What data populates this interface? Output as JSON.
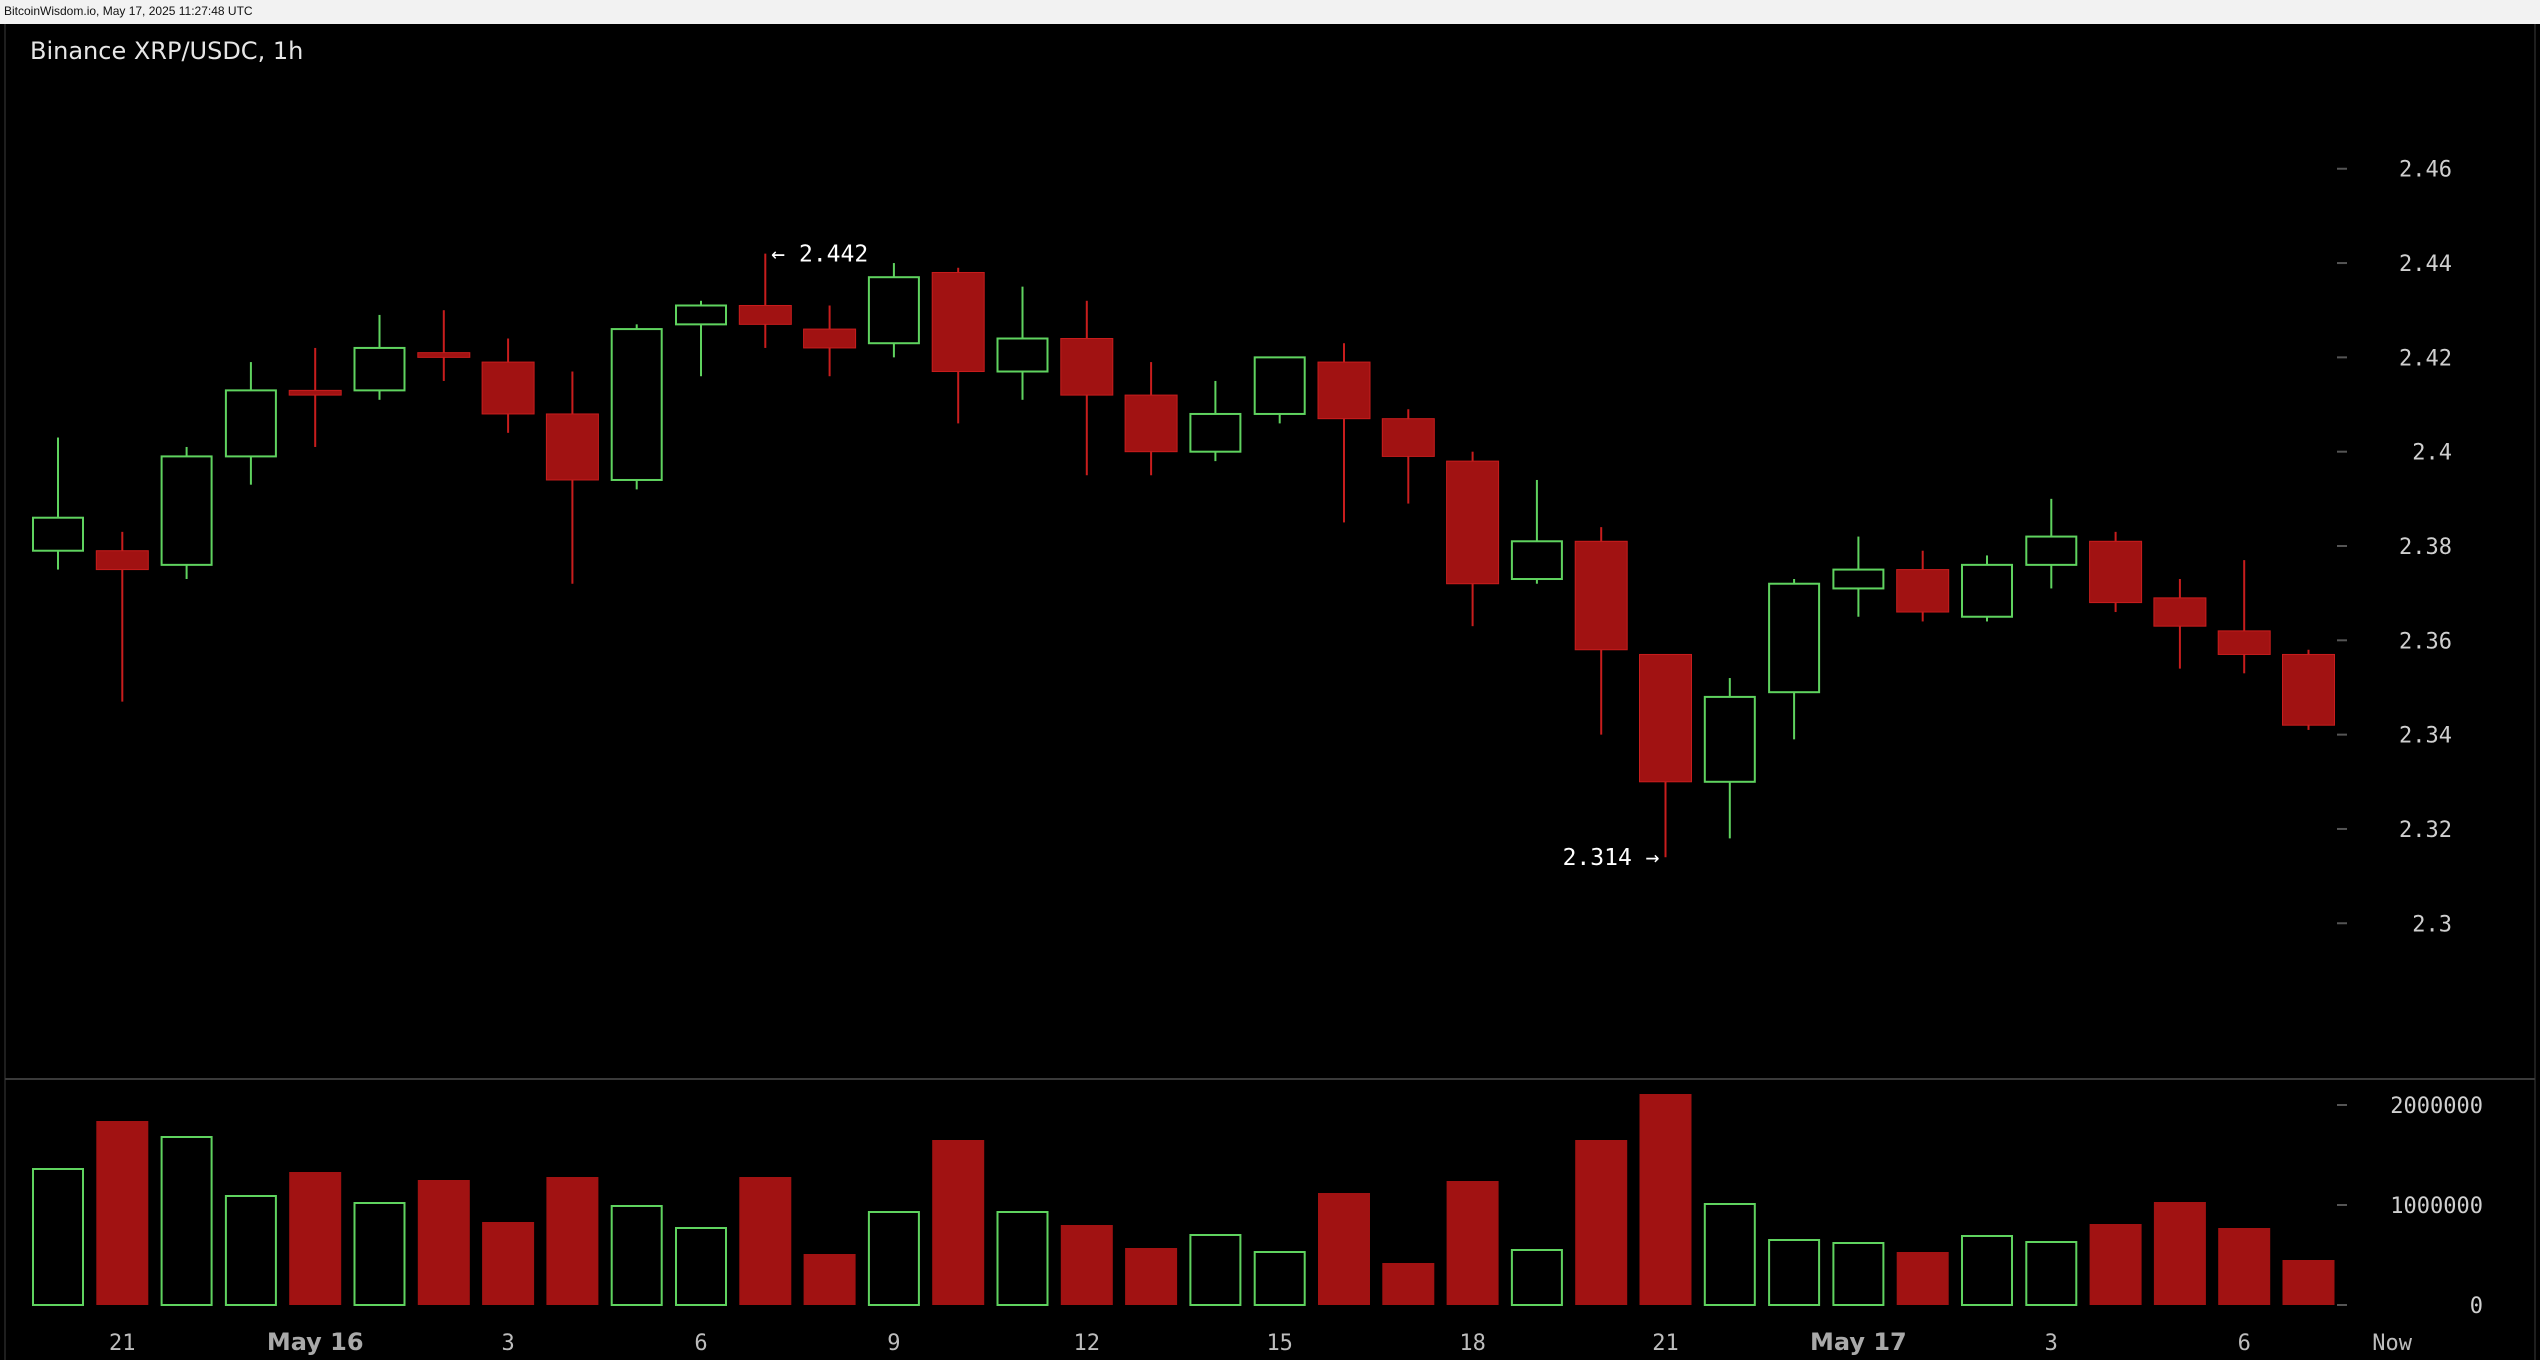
{
  "header": {
    "timestamp": "BitcoinWisdom.io, May 17, 2025 11:27:48 UTC"
  },
  "colors": {
    "up": "#5fd35f",
    "down": "#a11212",
    "down_stroke": "#c81d1d",
    "background": "#000000",
    "panel_border": "#1e1e1e"
  },
  "chart_data": {
    "type": "candlestick",
    "title": "Binance XRP/USDC, 1h",
    "price_axis": {
      "ylim": [
        2.285,
        2.475
      ],
      "ticks": [
        2.3,
        2.32,
        2.34,
        2.36,
        2.38,
        2.4,
        2.42,
        2.44,
        2.46
      ],
      "tick_labels": [
        "2.3",
        "2.32",
        "2.34",
        "2.36",
        "2.38",
        "2.4",
        "2.42",
        "2.44",
        "2.46"
      ]
    },
    "volume_axis": {
      "ylim": [
        0,
        2100000
      ],
      "ticks": [
        0,
        1000000,
        2000000
      ],
      "tick_labels": [
        "0",
        "1000000",
        "2000000"
      ]
    },
    "x_labels": [
      {
        "index": 1,
        "label": "21",
        "major": false
      },
      {
        "index": 4,
        "label": "May 16",
        "major": true
      },
      {
        "index": 7,
        "label": "3",
        "major": false
      },
      {
        "index": 10,
        "label": "6",
        "major": false
      },
      {
        "index": 13,
        "label": "9",
        "major": false
      },
      {
        "index": 16,
        "label": "12",
        "major": false
      },
      {
        "index": 19,
        "label": "15",
        "major": false
      },
      {
        "index": 22,
        "label": "18",
        "major": false
      },
      {
        "index": 25,
        "label": "21",
        "major": false
      },
      {
        "index": 28,
        "label": "May 17",
        "major": true
      },
      {
        "index": 31,
        "label": "3",
        "major": false
      },
      {
        "index": 34,
        "label": "6",
        "major": false
      },
      {
        "index": 36.3,
        "label": "Now",
        "major": false
      }
    ],
    "candles": [
      {
        "o": 2.379,
        "h": 2.403,
        "l": 2.375,
        "c": 2.386,
        "v": 1360000
      },
      {
        "o": 2.379,
        "h": 2.383,
        "l": 2.347,
        "c": 2.375,
        "v": 1840000
      },
      {
        "o": 2.376,
        "h": 2.401,
        "l": 2.373,
        "c": 2.399,
        "v": 1680000
      },
      {
        "o": 2.399,
        "h": 2.419,
        "l": 2.393,
        "c": 2.413,
        "v": 1090000
      },
      {
        "o": 2.413,
        "h": 2.422,
        "l": 2.401,
        "c": 2.412,
        "v": 1330000
      },
      {
        "o": 2.413,
        "h": 2.429,
        "l": 2.411,
        "c": 2.422,
        "v": 1020000
      },
      {
        "o": 2.421,
        "h": 2.43,
        "l": 2.415,
        "c": 2.42,
        "v": 1250000
      },
      {
        "o": 2.419,
        "h": 2.424,
        "l": 2.404,
        "c": 2.408,
        "v": 830000
      },
      {
        "o": 2.408,
        "h": 2.417,
        "l": 2.372,
        "c": 2.394,
        "v": 1280000
      },
      {
        "o": 2.394,
        "h": 2.427,
        "l": 2.392,
        "c": 2.426,
        "v": 990000
      },
      {
        "o": 2.427,
        "h": 2.432,
        "l": 2.416,
        "c": 2.431,
        "v": 770000
      },
      {
        "o": 2.431,
        "h": 2.442,
        "l": 2.422,
        "c": 2.427,
        "v": 1280000
      },
      {
        "o": 2.426,
        "h": 2.431,
        "l": 2.416,
        "c": 2.422,
        "v": 510000
      },
      {
        "o": 2.423,
        "h": 2.44,
        "l": 2.42,
        "c": 2.437,
        "v": 930000
      },
      {
        "o": 2.438,
        "h": 2.439,
        "l": 2.406,
        "c": 2.417,
        "v": 1650000
      },
      {
        "o": 2.417,
        "h": 2.435,
        "l": 2.411,
        "c": 2.424,
        "v": 930000
      },
      {
        "o": 2.424,
        "h": 2.432,
        "l": 2.395,
        "c": 2.412,
        "v": 800000
      },
      {
        "o": 2.412,
        "h": 2.419,
        "l": 2.395,
        "c": 2.4,
        "v": 570000
      },
      {
        "o": 2.4,
        "h": 2.415,
        "l": 2.398,
        "c": 2.408,
        "v": 700000
      },
      {
        "o": 2.408,
        "h": 2.42,
        "l": 2.406,
        "c": 2.42,
        "v": 530000
      },
      {
        "o": 2.419,
        "h": 2.423,
        "l": 2.385,
        "c": 2.407,
        "v": 1120000
      },
      {
        "o": 2.407,
        "h": 2.409,
        "l": 2.389,
        "c": 2.399,
        "v": 420000
      },
      {
        "o": 2.398,
        "h": 2.4,
        "l": 2.363,
        "c": 2.372,
        "v": 1240000
      },
      {
        "o": 2.373,
        "h": 2.394,
        "l": 2.372,
        "c": 2.381,
        "v": 550000
      },
      {
        "o": 2.381,
        "h": 2.384,
        "l": 2.34,
        "c": 2.358,
        "v": 1650000
      },
      {
        "o": 2.357,
        "h": 2.357,
        "l": 2.314,
        "c": 2.33,
        "v": 2110000
      },
      {
        "o": 2.33,
        "h": 2.352,
        "l": 2.318,
        "c": 2.348,
        "v": 1010000
      },
      {
        "o": 2.349,
        "h": 2.373,
        "l": 2.339,
        "c": 2.372,
        "v": 650000
      },
      {
        "o": 2.371,
        "h": 2.382,
        "l": 2.365,
        "c": 2.375,
        "v": 620000
      },
      {
        "o": 2.375,
        "h": 2.379,
        "l": 2.364,
        "c": 2.366,
        "v": 530000
      },
      {
        "o": 2.365,
        "h": 2.378,
        "l": 2.364,
        "c": 2.376,
        "v": 690000
      },
      {
        "o": 2.376,
        "h": 2.39,
        "l": 2.371,
        "c": 2.382,
        "v": 630000
      },
      {
        "o": 2.381,
        "h": 2.383,
        "l": 2.366,
        "c": 2.368,
        "v": 810000
      },
      {
        "o": 2.369,
        "h": 2.373,
        "l": 2.354,
        "c": 2.363,
        "v": 1030000
      },
      {
        "o": 2.362,
        "h": 2.377,
        "l": 2.353,
        "c": 2.357,
        "v": 770000
      },
      {
        "o": 2.357,
        "h": 2.358,
        "l": 2.341,
        "c": 2.342,
        "v": 450000
      }
    ],
    "annotations": [
      {
        "text": "← 2.442",
        "candle": 11,
        "price": 2.442,
        "side": "right"
      },
      {
        "text": "2.314 →",
        "candle": 25,
        "price": 2.314,
        "side": "left"
      }
    ]
  }
}
